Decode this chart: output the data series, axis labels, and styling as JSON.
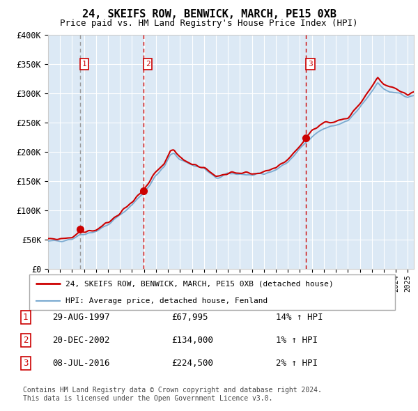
{
  "title": "24, SKEIFS ROW, BENWICK, MARCH, PE15 0XB",
  "subtitle": "Price paid vs. HM Land Registry's House Price Index (HPI)",
  "ylim": [
    0,
    400000
  ],
  "yticks": [
    0,
    50000,
    100000,
    150000,
    200000,
    250000,
    300000,
    350000,
    400000
  ],
  "ytick_labels": [
    "£0",
    "£50K",
    "£100K",
    "£150K",
    "£200K",
    "£250K",
    "£300K",
    "£350K",
    "£400K"
  ],
  "xlim_start": 1995.0,
  "xlim_end": 2025.5,
  "price_paid": [
    {
      "date_year": 1997.66,
      "price": 67995,
      "label": "1"
    },
    {
      "date_year": 2002.97,
      "price": 134000,
      "label": "2"
    },
    {
      "date_year": 2016.52,
      "price": 224500,
      "label": "3"
    }
  ],
  "legend_entries": [
    {
      "label": "24, SKEIFS ROW, BENWICK, MARCH, PE15 0XB (detached house)",
      "color": "#cc0000",
      "linewidth": 2
    },
    {
      "label": "HPI: Average price, detached house, Fenland",
      "color": "#7aaad0",
      "linewidth": 1.5
    }
  ],
  "table_rows": [
    {
      "num": "1",
      "date": "29-AUG-1997",
      "price": "£67,995",
      "change": "14% ↑ HPI"
    },
    {
      "num": "2",
      "date": "20-DEC-2002",
      "price": "£134,000",
      "change": "1% ↑ HPI"
    },
    {
      "num": "3",
      "date": "08-JUL-2016",
      "price": "£224,500",
      "change": "2% ↑ HPI"
    }
  ],
  "footnote": "Contains HM Land Registry data © Crown copyright and database right 2024.\nThis data is licensed under the Open Government Licence v3.0.",
  "background_color": "#dce9f5",
  "grid_color": "#ffffff"
}
